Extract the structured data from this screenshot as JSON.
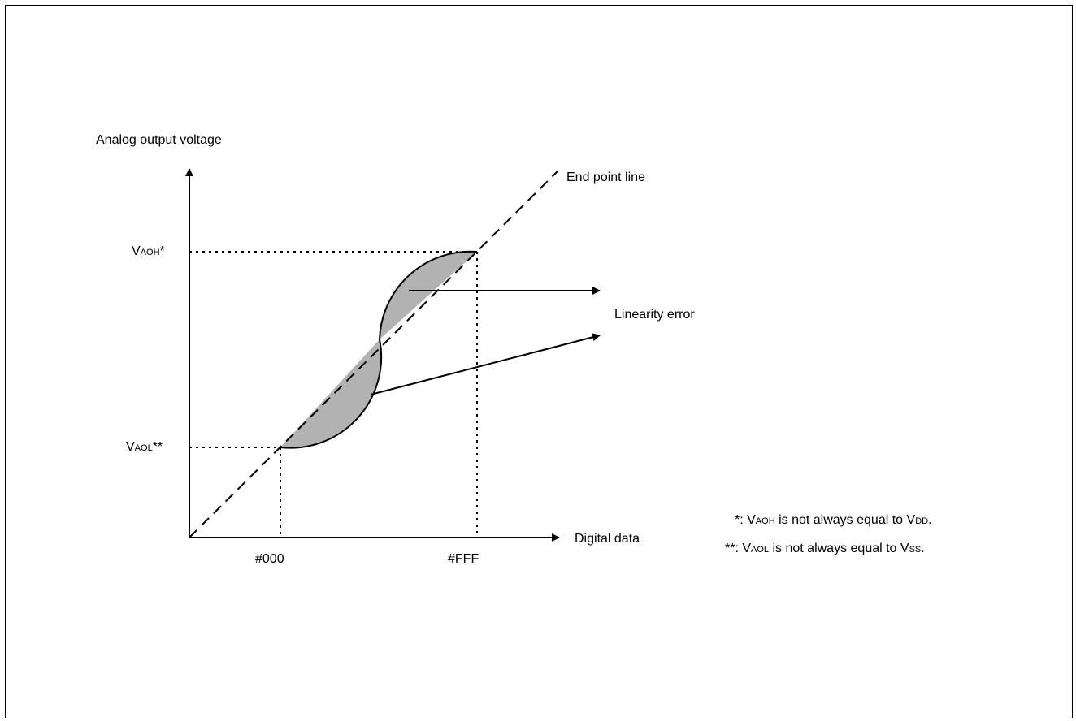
{
  "diagram": {
    "y_axis_label": "Analog output voltage",
    "x_axis_label": "Digital data",
    "end_point_label": "End point line",
    "linearity_label": "Linearity error",
    "vaoh": {
      "main": "V",
      "sub": "AOH",
      "suffix": "*"
    },
    "vaol": {
      "main": "V",
      "sub": "AOL",
      "suffix": "**"
    },
    "x_tick_low": "#000",
    "x_tick_high": "#FFF"
  },
  "notes": [
    {
      "prefix": "*: ",
      "v1": "V",
      "s1": "AOH",
      "mid": " is not always equal to ",
      "v2": "V",
      "s2": "DD",
      "end": "."
    },
    {
      "prefix": "**: ",
      "v1": "V",
      "s1": "AOL",
      "mid": " is not always equal to ",
      "v2": "V",
      "s2": "SS",
      "end": "."
    }
  ],
  "colors": {
    "fill": "#b2b2b2",
    "line": "#000000"
  }
}
